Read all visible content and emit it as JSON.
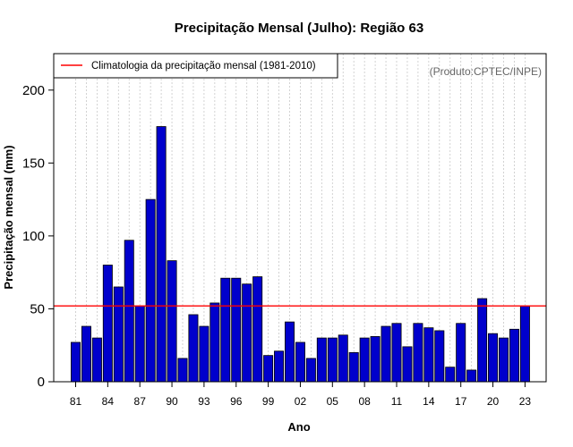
{
  "chart_data": {
    "type": "bar",
    "title": "Precipitação Mensal (Julho): Região 63",
    "xlabel": "Ano",
    "ylabel": "Precipitação mensal (mm)",
    "source_note": "(Produto:CPTEC/INPE)",
    "ylim": [
      0,
      225
    ],
    "yticks": [
      0,
      50,
      100,
      150,
      200
    ],
    "x_tick_labels": [
      {
        "year": 1981,
        "label": "81"
      },
      {
        "year": 1984,
        "label": "84"
      },
      {
        "year": 1987,
        "label": "87"
      },
      {
        "year": 1990,
        "label": "90"
      },
      {
        "year": 1993,
        "label": "93"
      },
      {
        "year": 1996,
        "label": "96"
      },
      {
        "year": 1999,
        "label": "99"
      },
      {
        "year": 2002,
        "label": "02"
      },
      {
        "year": 2005,
        "label": "05"
      },
      {
        "year": 2008,
        "label": "08"
      },
      {
        "year": 2011,
        "label": "11"
      },
      {
        "year": 2014,
        "label": "14"
      },
      {
        "year": 2017,
        "label": "17"
      },
      {
        "year": 2020,
        "label": "20"
      },
      {
        "year": 2023,
        "label": "23"
      }
    ],
    "years": [
      1981,
      1982,
      1983,
      1984,
      1985,
      1986,
      1987,
      1988,
      1989,
      1990,
      1991,
      1992,
      1993,
      1994,
      1995,
      1996,
      1997,
      1998,
      1999,
      2000,
      2001,
      2002,
      2003,
      2004,
      2005,
      2006,
      2007,
      2008,
      2009,
      2010,
      2011,
      2012,
      2013,
      2014,
      2015,
      2016,
      2017,
      2018,
      2019,
      2020,
      2021,
      2022,
      2023
    ],
    "values": [
      27,
      38,
      30,
      80,
      65,
      97,
      52,
      125,
      175,
      83,
      16,
      46,
      38,
      54,
      71,
      71,
      67,
      72,
      18,
      21,
      41,
      27,
      16,
      30,
      30,
      32,
      20,
      30,
      31,
      38,
      40,
      24,
      40,
      37,
      35,
      10,
      40,
      8,
      57,
      33,
      30,
      36,
      52
    ],
    "climatology": 52,
    "legend": {
      "label": "Climatologia da precipitação mensal (1981-2010)",
      "placement": "top-left"
    },
    "grid": "vertical dotted",
    "colors": {
      "bar": "#0000cc",
      "bar_edge": "#000000",
      "climatology_line": "#ff0000",
      "grid": "#c8c8c8",
      "note": "#666666"
    }
  }
}
